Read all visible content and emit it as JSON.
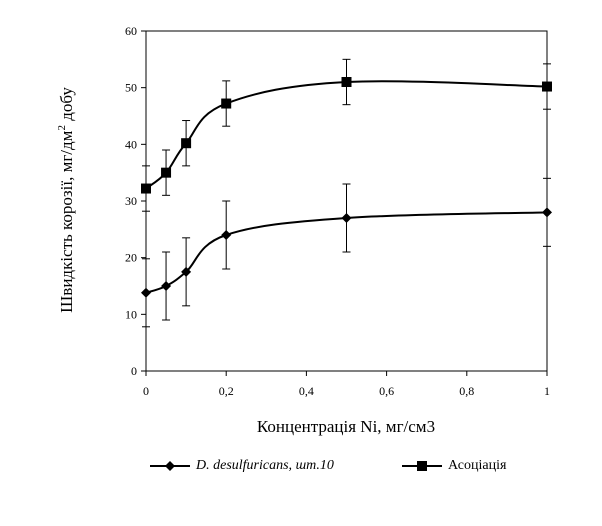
{
  "chart_data": {
    "type": "line",
    "title": "",
    "xlabel": "Концентрація Ni, мг/см3",
    "ylabel_main": "Швидкість корозії, мг/дм",
    "ylabel_sup": "2",
    "ylabel_tail": " добу",
    "xlim": [
      0,
      1
    ],
    "ylim": [
      0,
      60
    ],
    "x_ticks": [
      "0",
      "0,2",
      "0,4",
      "0,6",
      "0,8",
      "1"
    ],
    "y_ticks": [
      "0",
      "10",
      "20",
      "30",
      "40",
      "50",
      "60"
    ],
    "grid": false,
    "legend_position": "bottom",
    "series": [
      {
        "name_italic": "D. desulfuricans,",
        "name_rest": " шт.10",
        "marker": "diamond",
        "color": "#000000",
        "x": [
          0,
          0.05,
          0.1,
          0.2,
          0.5,
          1
        ],
        "y": [
          13.8,
          15,
          17.5,
          24,
          27,
          28
        ],
        "err": [
          6,
          6,
          6,
          6,
          6,
          6
        ]
      },
      {
        "name": "Асоціація",
        "marker": "square",
        "color": "#000000",
        "x": [
          0,
          0.05,
          0.1,
          0.2,
          0.5,
          1
        ],
        "y": [
          32.2,
          35,
          40.2,
          47.2,
          51,
          50.2
        ],
        "err": [
          4,
          4,
          4,
          4,
          4,
          4
        ]
      }
    ]
  }
}
